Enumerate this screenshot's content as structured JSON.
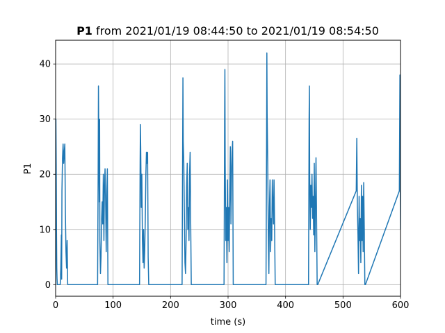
{
  "chart_data": {
    "type": "line",
    "title_bold": "P1",
    "title_rest": " from 2021/01/19 08:44:50 to 2021/01/19 08:54:50",
    "xlabel": "time (s)",
    "ylabel": "P1",
    "xlim": [
      0,
      600
    ],
    "ylim": [
      -2.1,
      44.3
    ],
    "xticks": [
      0,
      100,
      200,
      300,
      400,
      500,
      600
    ],
    "yticks": [
      0,
      10,
      20,
      30,
      40
    ],
    "grid": true,
    "series_color": "#1f77b4",
    "series": [
      {
        "x": [
          0,
          0.5,
          1,
          1.5,
          2,
          2.5,
          3,
          4,
          5,
          6,
          8,
          9,
          10,
          10.5,
          11,
          12,
          13,
          14,
          15,
          16,
          17,
          18,
          19,
          20,
          21,
          21.5,
          22,
          73,
          74,
          74.5,
          75,
          76,
          76.5,
          77,
          78,
          79,
          80,
          81,
          82,
          83,
          84,
          85,
          86,
          87,
          88,
          89,
          90,
          91,
          92,
          146,
          147,
          147.5,
          148,
          149,
          150,
          151,
          152,
          153,
          154,
          155,
          156,
          157,
          158,
          159,
          160,
          161,
          162,
          163,
          220,
          221,
          221.5,
          222,
          223,
          224,
          225,
          226,
          227,
          228,
          229,
          230,
          231,
          232,
          233,
          234,
          235,
          236,
          293,
          294,
          294.5,
          295,
          296,
          297,
          298,
          299,
          300,
          301,
          302,
          303,
          304,
          305,
          306,
          307,
          308,
          309,
          366,
          367,
          367.5,
          368,
          369,
          370,
          371,
          372,
          373,
          374,
          375,
          376,
          377,
          378,
          379,
          380,
          381,
          382,
          440,
          441,
          441.5,
          442,
          443,
          444,
          445,
          446,
          447,
          448,
          449,
          450,
          451,
          452,
          453,
          454,
          455,
          456,
          523,
          524,
          524.5,
          525,
          526,
          527,
          528,
          529,
          530,
          531,
          532,
          533,
          534,
          535,
          536,
          537,
          538,
          539,
          598,
          599,
          599.5,
          600
        ],
        "y": [
          0,
          30,
          22,
          10,
          3,
          1,
          0,
          0,
          0,
          0,
          0,
          3,
          9,
          1,
          17,
          23,
          25.5,
          22,
          24,
          25.5,
          13,
          6,
          3,
          8,
          0,
          0,
          0,
          0,
          20,
          36,
          28,
          15,
          30,
          8,
          2,
          5,
          12,
          15,
          11,
          20,
          8,
          18,
          21,
          15,
          6,
          16,
          21,
          0,
          0,
          0,
          22,
          29,
          25,
          14,
          20,
          8,
          4,
          10,
          3,
          6,
          12,
          20,
          24,
          22,
          24,
          5,
          0,
          0,
          0,
          25,
          37.5,
          26,
          22,
          13,
          4,
          2,
          8,
          18,
          22,
          10,
          14,
          8,
          20,
          24,
          11,
          0,
          0,
          30,
          39,
          22,
          8,
          14,
          4,
          19,
          8,
          14,
          6,
          17,
          25,
          11,
          20,
          24,
          26,
          0,
          0,
          25,
          42,
          31,
          22,
          9,
          2,
          14,
          19,
          6,
          12,
          8,
          19,
          15,
          11,
          19,
          10,
          0,
          0,
          30,
          36,
          20,
          10,
          18,
          14,
          20,
          12,
          16,
          9,
          22,
          6,
          14,
          23,
          12,
          0,
          0,
          17,
          26.5,
          20,
          14,
          9,
          2,
          16,
          8,
          12,
          4,
          18,
          8,
          16,
          6,
          18.5,
          10,
          0,
          0,
          17,
          38,
          20,
          10
        ]
      }
    ]
  }
}
